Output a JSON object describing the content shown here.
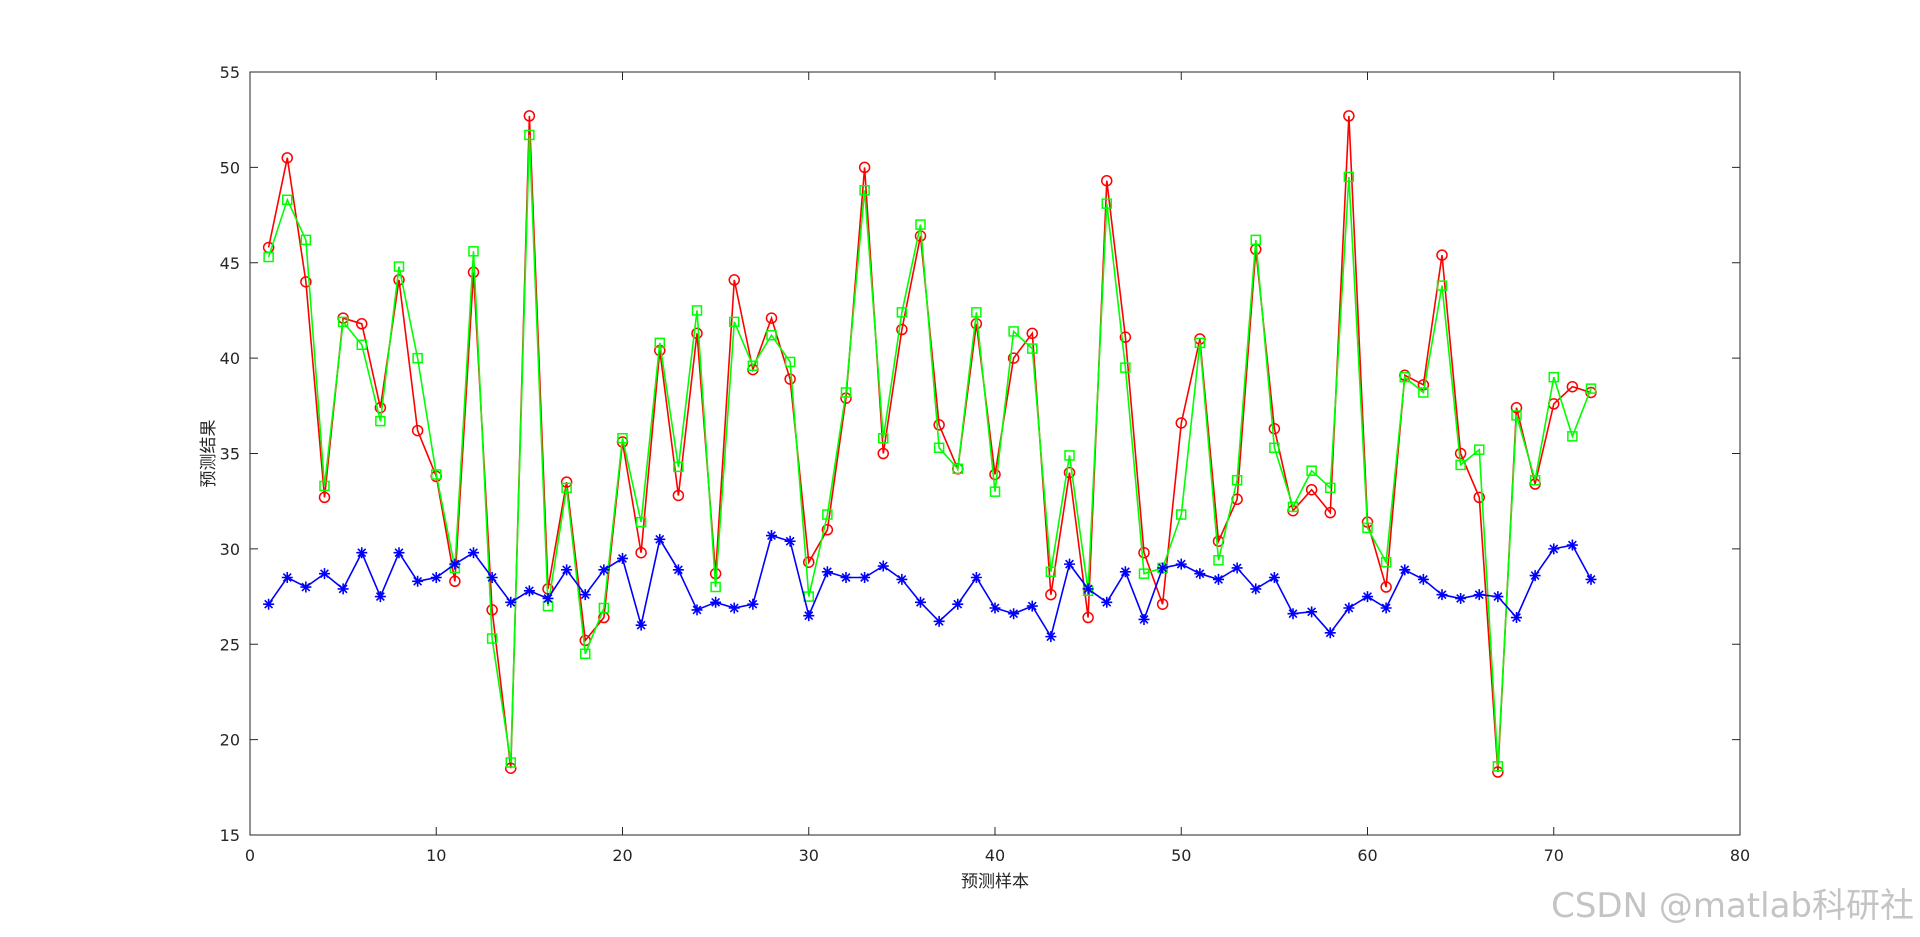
{
  "chart_data": {
    "type": "line",
    "title": "",
    "xlabel": "预测样本",
    "ylabel": "预测结果",
    "xlim": [
      0,
      80
    ],
    "ylim": [
      15,
      55
    ],
    "xticks": [
      0,
      10,
      20,
      30,
      40,
      50,
      60,
      70,
      80
    ],
    "yticks": [
      15,
      20,
      25,
      30,
      35,
      40,
      45,
      50,
      55
    ],
    "grid": false,
    "series": [
      {
        "marker": "o",
        "color": "#ff0000",
        "values": [
          45.8,
          50.5,
          44.0,
          32.7,
          42.1,
          41.8,
          37.4,
          44.1,
          36.2,
          33.8,
          28.3,
          44.5,
          26.8,
          18.5,
          52.7,
          27.9,
          33.5,
          25.2,
          26.4,
          35.6,
          29.8,
          40.4,
          32.8,
          41.3,
          28.7,
          44.1,
          39.4,
          42.1,
          38.9,
          29.3,
          31.0,
          37.9,
          50.0,
          35.0,
          41.5,
          46.4,
          36.5,
          34.2,
          41.8,
          33.9,
          40.0,
          41.3,
          27.6,
          34.0,
          26.4,
          49.3,
          41.1,
          29.8,
          27.1,
          36.6,
          41.0,
          30.4,
          32.6,
          45.7,
          36.3,
          32.0,
          33.1,
          31.9,
          52.7,
          31.4,
          28.0,
          39.1,
          38.6,
          45.4,
          35.0,
          32.7,
          18.3,
          37.4,
          33.4,
          37.6,
          38.5,
          38.2
        ]
      },
      {
        "marker": "s",
        "color": "#00ff00",
        "values": [
          45.3,
          48.3,
          46.2,
          33.3,
          41.9,
          40.7,
          36.7,
          44.8,
          40.0,
          33.9,
          29.0,
          45.6,
          25.3,
          18.8,
          51.7,
          27.0,
          33.2,
          24.5,
          26.9,
          35.8,
          31.4,
          40.8,
          34.3,
          42.5,
          28.0,
          41.9,
          39.6,
          41.2,
          39.8,
          27.5,
          31.8,
          38.2,
          48.8,
          35.8,
          42.4,
          47.0,
          35.3,
          34.2,
          42.4,
          33.0,
          41.4,
          40.5,
          28.8,
          34.9,
          27.8,
          48.1,
          39.5,
          28.7,
          29.0,
          31.8,
          40.8,
          29.4,
          33.6,
          46.2,
          35.3,
          32.2,
          34.1,
          33.2,
          49.5,
          31.1,
          29.3,
          39.0,
          38.2,
          43.8,
          34.4,
          35.2,
          18.6,
          37.0,
          33.6,
          39.0,
          35.9,
          38.4
        ]
      },
      {
        "marker": "*",
        "color": "#0000ff",
        "values": [
          27.1,
          28.5,
          28.0,
          28.7,
          27.9,
          29.8,
          27.5,
          29.8,
          28.3,
          28.5,
          29.2,
          29.8,
          28.5,
          27.2,
          27.8,
          27.4,
          28.9,
          27.6,
          28.9,
          29.5,
          26.0,
          30.5,
          28.9,
          26.8,
          27.2,
          26.9,
          27.1,
          30.7,
          30.4,
          26.5,
          28.8,
          28.5,
          28.5,
          29.1,
          28.4,
          27.2,
          26.2,
          27.1,
          28.5,
          26.9,
          26.6,
          27.0,
          25.4,
          29.2,
          27.9,
          27.2,
          28.8,
          26.3,
          29.0,
          29.2,
          28.7,
          28.4,
          29.0,
          27.9,
          28.5,
          26.6,
          26.7,
          25.6,
          26.9,
          27.5,
          26.9,
          28.9,
          28.4,
          27.6,
          27.4,
          27.6,
          27.5,
          26.4,
          28.6,
          30.0,
          30.2,
          28.4
        ]
      }
    ]
  },
  "watermark": "CSDN @matlab科研社"
}
